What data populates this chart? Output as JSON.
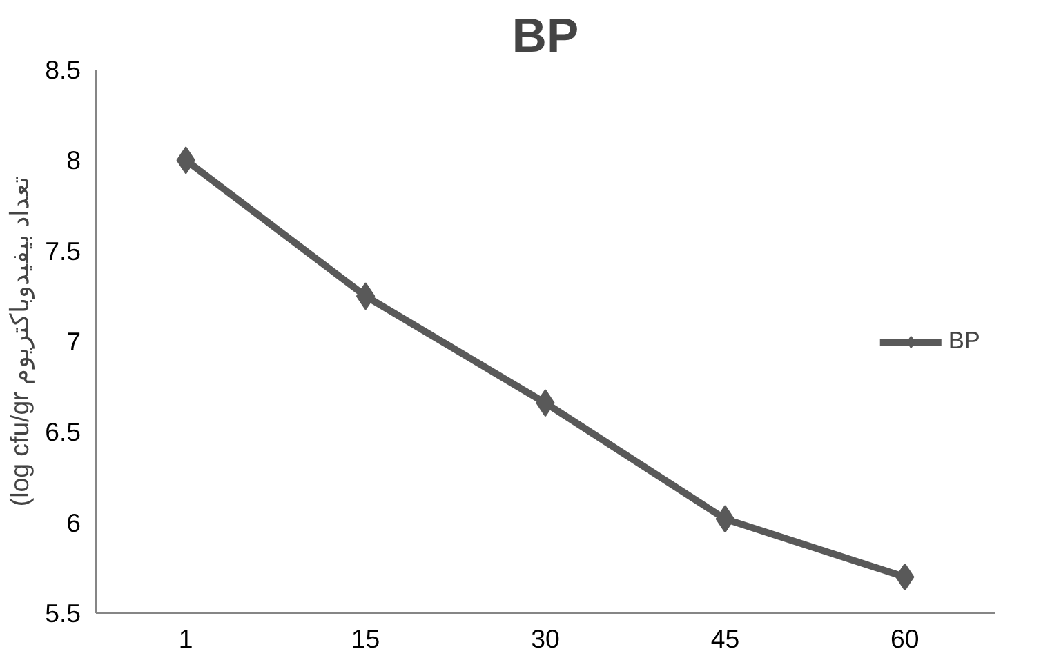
{
  "chart_data": {
    "type": "line",
    "title": "BP",
    "ylabel": "(log cfu/gr تعداد بیفیدوباکتریوم",
    "categories": [
      "1",
      "15",
      "30",
      "45",
      "60"
    ],
    "series": [
      {
        "name": "BP",
        "color": "#595959",
        "values": [
          8.0,
          7.25,
          6.66,
          6.02,
          5.7
        ]
      }
    ],
    "ylim": [
      5.5,
      8.5
    ],
    "yticks": [
      5.5,
      6,
      6.5,
      7,
      7.5,
      8,
      8.5
    ],
    "grid": false,
    "legend": "right",
    "marker": "diamond",
    "line_style": "solid"
  }
}
